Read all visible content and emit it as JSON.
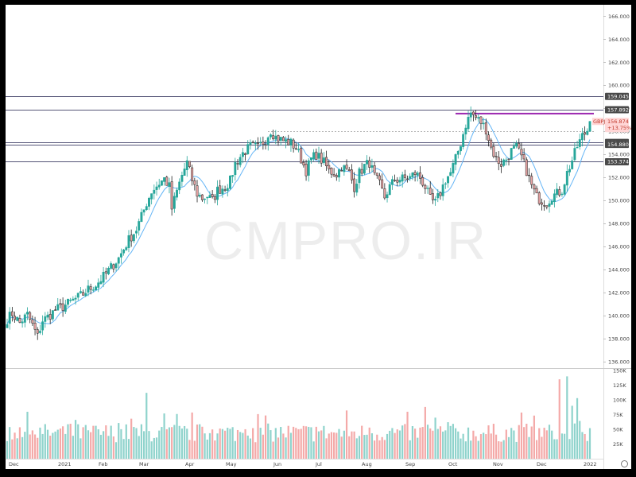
{
  "watermark": "CMPRO.IR",
  "colors": {
    "up": "#26a69a",
    "up_volume": "#8fd3cc",
    "down_fill": "#e8a3a3",
    "down_border": "#222222",
    "down_volume": "#f4a9a8",
    "ma": "#64b5f6",
    "level_line": "#555577",
    "resistance_line": "#9c27b0",
    "tag_bg": "#4a4a4a",
    "last_tag_bg": "#ffd6d6",
    "last_tag_text": "#c0392b"
  },
  "icons": {
    "settings": "gear-icon"
  },
  "chart_data": {
    "type": "candlestick",
    "symbol": "GBPJPY",
    "last_price": 156.874,
    "change_percent": "+13.75%",
    "ylim": [
      135.6,
      167.0
    ],
    "volume_ylim": [
      0,
      150000
    ],
    "price_ticks": [
      "136.000",
      "138.000",
      "140.000",
      "142.000",
      "144.000",
      "146.000",
      "148.000",
      "150.000",
      "152.000",
      "154.000",
      "156.000",
      "158.000",
      "160.000",
      "162.000",
      "164.000",
      "166.000"
    ],
    "volume_ticks": [
      "25K",
      "50K",
      "75K",
      "100K",
      "125K",
      "150K"
    ],
    "x_ticks": [
      "Dec",
      "2021",
      "Feb",
      "Mar",
      "Apr",
      "May",
      "Jun",
      "Jul",
      "Aug",
      "Sep",
      "Oct",
      "Nov",
      "Dec",
      "2022"
    ],
    "levels": [
      {
        "label": "159.045",
        "value": 159.045
      },
      {
        "label": "157.892",
        "value": 157.892
      },
      {
        "label": "155.055",
        "value": 155.055
      },
      {
        "label": "154.880",
        "value": 154.88
      },
      {
        "label": "153.374",
        "value": 153.374
      }
    ],
    "resistance_value": 157.55,
    "dotted_level": 156.05,
    "price_path": [
      [
        0,
        139.7
      ],
      [
        2,
        140.2
      ],
      [
        5,
        139.4
      ],
      [
        8,
        140.1
      ],
      [
        10,
        139.2
      ],
      [
        12,
        138.2
      ],
      [
        14,
        139.6
      ],
      [
        16,
        139.9
      ],
      [
        19,
        140.5
      ],
      [
        22,
        140.8
      ],
      [
        25,
        141.2
      ],
      [
        28,
        141.6
      ],
      [
        30,
        141.9
      ],
      [
        32,
        142.3
      ],
      [
        35,
        142.7
      ],
      [
        38,
        143.4
      ],
      [
        41,
        144.2
      ],
      [
        44,
        145.0
      ],
      [
        46,
        145.8
      ],
      [
        48,
        146.6
      ],
      [
        51,
        147.5
      ],
      [
        53,
        148.6
      ],
      [
        55,
        149.8
      ],
      [
        57,
        150.8
      ],
      [
        60,
        151.5
      ],
      [
        62,
        151.9
      ],
      [
        64,
        151.2
      ],
      [
        65,
        149.3
      ],
      [
        67,
        150.8
      ],
      [
        69,
        152.2
      ],
      [
        71,
        153.3
      ],
      [
        73,
        151.8
      ],
      [
        75,
        150.6
      ],
      [
        77,
        150.2
      ],
      [
        79,
        150.4
      ],
      [
        81,
        150.0
      ],
      [
        83,
        150.9
      ],
      [
        86,
        151.2
      ],
      [
        88,
        151.7
      ],
      [
        90,
        153.2
      ],
      [
        93,
        154.1
      ],
      [
        96,
        154.7
      ],
      [
        99,
        154.6
      ],
      [
        102,
        155.3
      ],
      [
        104,
        156.1
      ],
      [
        106,
        155.5
      ],
      [
        109,
        155.2
      ],
      [
        112,
        155.0
      ],
      [
        114,
        154.6
      ],
      [
        116,
        153.6
      ],
      [
        118,
        152.6
      ],
      [
        120,
        153.6
      ],
      [
        122,
        154.0
      ],
      [
        125,
        153.3
      ],
      [
        127,
        152.6
      ],
      [
        130,
        152.3
      ],
      [
        132,
        153.0
      ],
      [
        135,
        152.4
      ],
      [
        137,
        151.2
      ],
      [
        139,
        152.4
      ],
      [
        141,
        153.0
      ],
      [
        143,
        153.3
      ],
      [
        145,
        152.1
      ],
      [
        147,
        151.4
      ],
      [
        149,
        150.3
      ],
      [
        151,
        151.2
      ],
      [
        153,
        151.8
      ],
      [
        156,
        151.9
      ],
      [
        159,
        152.0
      ],
      [
        161,
        152.4
      ],
      [
        163,
        152.0
      ],
      [
        165,
        151.2
      ],
      [
        167,
        150.1
      ],
      [
        169,
        149.8
      ],
      [
        171,
        150.7
      ],
      [
        173,
        151.8
      ],
      [
        175,
        152.4
      ],
      [
        177,
        153.6
      ],
      [
        179,
        155.0
      ],
      [
        181,
        156.6
      ],
      [
        183,
        157.6
      ],
      [
        185,
        157.2
      ],
      [
        187,
        156.8
      ],
      [
        189,
        156.2
      ],
      [
        191,
        154.6
      ],
      [
        193,
        153.6
      ],
      [
        195,
        153.2
      ],
      [
        197,
        153.6
      ],
      [
        199,
        154.3
      ],
      [
        201,
        154.6
      ],
      [
        203,
        153.8
      ],
      [
        205,
        152.6
      ],
      [
        207,
        151.3
      ],
      [
        209,
        150.3
      ],
      [
        211,
        150.0
      ],
      [
        213,
        149.8
      ],
      [
        215,
        150.4
      ],
      [
        217,
        150.6
      ],
      [
        219,
        150.9
      ],
      [
        221,
        152.4
      ],
      [
        223,
        153.5
      ],
      [
        225,
        154.7
      ],
      [
        227,
        155.6
      ],
      [
        229,
        156.1
      ],
      [
        230,
        156.874
      ]
    ],
    "volume_spikes": [
      [
        27,
        66000
      ],
      [
        55,
        112000
      ],
      [
        67,
        76000
      ],
      [
        134,
        82000
      ],
      [
        165,
        88000
      ],
      [
        218,
        135000
      ],
      [
        221,
        140000
      ],
      [
        223,
        90000
      ],
      [
        225,
        103000
      ],
      [
        230,
        52000
      ]
    ]
  }
}
